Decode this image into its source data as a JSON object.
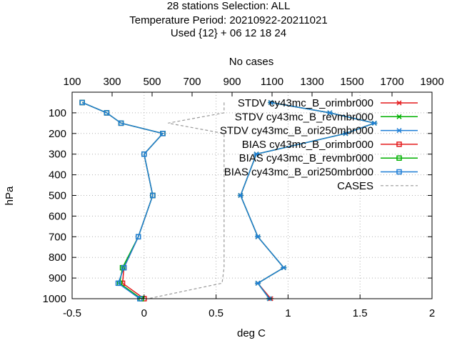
{
  "header": {
    "title_lines": [
      "28 stations Selection: ALL",
      "Temperature  Period: 20210922-20211021",
      "Used {12} + 06 12 18 24"
    ]
  },
  "chart_data": {
    "type": "line",
    "xlabel": "deg C",
    "ylabel": "hPa",
    "x2label": "No cases",
    "xlim": [
      -0.5,
      2
    ],
    "x2lim": [
      100,
      1900
    ],
    "ylim": [
      1000,
      0
    ],
    "y_reversed": true,
    "grid": true,
    "legend_position": "top-right",
    "x_ticks": [
      "-0.5",
      "0",
      "0.5",
      "1",
      "1.5",
      "2"
    ],
    "x2_ticks": [
      "100",
      "300",
      "500",
      "700",
      "900",
      "1100",
      "1300",
      "1500",
      "1700",
      "1900"
    ],
    "y_ticks": [
      "100",
      "200",
      "300",
      "400",
      "500",
      "600",
      "700",
      "800",
      "900",
      "1000"
    ],
    "levels": [
      50,
      100,
      150,
      200,
      300,
      500,
      700,
      850,
      925,
      1000
    ],
    "series": [
      {
        "name": "STDV cy43mc_B_orimbr000",
        "kind": "stdv",
        "color": "#e41a1c",
        "marker": "x",
        "values": [
          0.88,
          1.29,
          1.6,
          1.4,
          0.78,
          0.67,
          0.79,
          0.97,
          0.79,
          0.88
        ]
      },
      {
        "name": "STDV cy43mc_B_revmbr000",
        "kind": "stdv",
        "color": "#00b000",
        "marker": "x",
        "values": [
          0.88,
          1.29,
          1.6,
          1.4,
          0.78,
          0.67,
          0.79,
          0.97,
          0.79,
          0.87
        ]
      },
      {
        "name": "STDV cy43mc_B_ori250mbr000",
        "kind": "stdv",
        "color": "#1e7ed6",
        "marker": "x",
        "values": [
          0.88,
          1.29,
          1.6,
          1.4,
          0.78,
          0.67,
          0.79,
          0.97,
          0.79,
          0.87
        ]
      },
      {
        "name": "BIAS cy43mc_B_orimbr000",
        "kind": "bias",
        "color": "#e41a1c",
        "marker": "square",
        "values": [
          -0.43,
          -0.26,
          -0.16,
          0.13,
          0.0,
          0.06,
          -0.04,
          -0.14,
          -0.15,
          0.0
        ]
      },
      {
        "name": "BIAS cy43mc_B_revmbr000",
        "kind": "bias",
        "color": "#00b000",
        "marker": "square",
        "values": [
          -0.43,
          -0.26,
          -0.16,
          0.13,
          0.0,
          0.06,
          -0.04,
          -0.15,
          -0.17,
          -0.02
        ]
      },
      {
        "name": "BIAS cy43mc_B_ori250mbr000",
        "kind": "bias",
        "color": "#1e7ed6",
        "marker": "square",
        "values": [
          -0.43,
          -0.26,
          -0.16,
          0.13,
          0.0,
          0.06,
          -0.04,
          -0.14,
          -0.18,
          -0.03
        ]
      },
      {
        "name": "CASES",
        "kind": "cases",
        "color": "#999999",
        "marker": "none",
        "axis": "x2",
        "values": [
          860,
          860,
          580,
          860,
          860,
          860,
          860,
          860,
          850,
          480
        ]
      }
    ]
  }
}
